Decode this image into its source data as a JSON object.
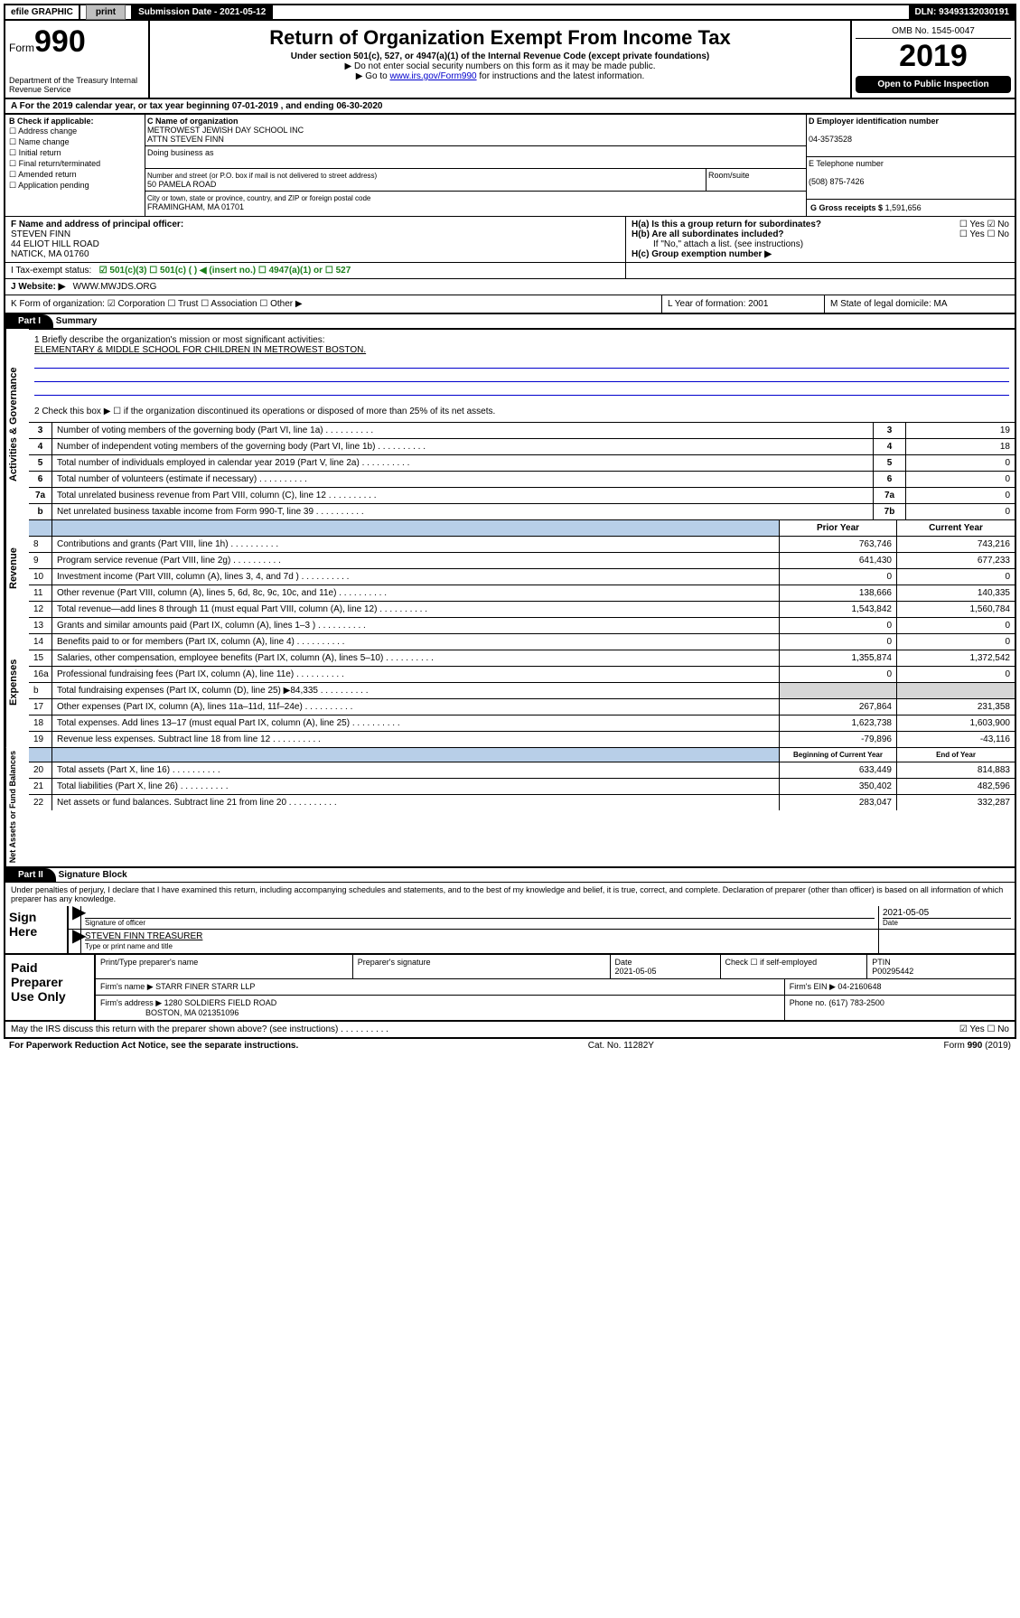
{
  "topbar": {
    "efile": "efile GRAPHIC",
    "print": "print",
    "subdate_lbl": "Submission Date - 2021-05-12",
    "dln": "DLN: 93493132030191"
  },
  "header": {
    "form_small": "Form",
    "form_big": "990",
    "title": "Return of Organization Exempt From Income Tax",
    "sub": "Under section 501(c), 527, or 4947(a)(1) of the Internal Revenue Code (except private foundations)",
    "noenter": "▶ Do not enter social security numbers on this form as it may be made public.",
    "goto_pre": "▶ Go to ",
    "goto_link": "www.irs.gov/Form990",
    "goto_post": " for instructions and the latest information.",
    "omb": "OMB No. 1545-0047",
    "year": "2019",
    "open": "Open to Public Inspection",
    "dept": "Department of the Treasury Internal Revenue Service"
  },
  "row_a": "A For the 2019 calendar year, or tax year beginning 07-01-2019   , and ending 06-30-2020",
  "block_b": {
    "label": "B Check if applicable:",
    "opts": [
      "Address change",
      "Name change",
      "Initial return",
      "Final return/terminated",
      "Amended return",
      "Application pending"
    ],
    "c_label": "C Name of organization",
    "org": "METROWEST JEWISH DAY SCHOOL INC",
    "attn": "ATTN STEVEN FINN",
    "dba_lbl": "Doing business as",
    "addr_lbl": "Number and street (or P.O. box if mail is not delivered to street address)",
    "room_lbl": "Room/suite",
    "addr": "50 PAMELA ROAD",
    "city_lbl": "City or town, state or province, country, and ZIP or foreign postal code",
    "city": "FRAMINGHAM, MA  01701",
    "d_lbl": "D Employer identification number",
    "ein": "04-3573528",
    "e_lbl": "E Telephone number",
    "phone": "(508) 875-7426",
    "g_lbl": "G Gross receipts $",
    "g_val": "1,591,656"
  },
  "fh": {
    "f_lbl": "F Name and address of principal officer:",
    "f_name": "STEVEN FINN",
    "f_addr1": "44 ELIOT HILL ROAD",
    "f_addr2": "NATICK, MA  01760",
    "ha": "H(a)  Is this a group return for subordinates?",
    "ha_ans": "☐ Yes  ☑ No",
    "hb": "H(b)  Are all subordinates included?",
    "hb_ans": "☐ Yes  ☐ No",
    "hb_note": "If \"No,\" attach a list. (see instructions)",
    "hc": "H(c)  Group exemption number ▶"
  },
  "row_i": {
    "lbl": "I   Tax-exempt status:",
    "opts": "☑ 501(c)(3)   ☐ 501(c) (  ) ◀ (insert no.)   ☐ 4947(a)(1) or   ☐ 527"
  },
  "row_j": {
    "lbl": "J   Website: ▶",
    "val": "WWW.MWJDS.ORG"
  },
  "row_k": {
    "k": "K Form of organization:  ☑ Corporation  ☐ Trust  ☐ Association  ☐ Other ▶",
    "l": "L Year of formation: 2001",
    "m": "M State of legal domicile: MA"
  },
  "part1": {
    "hdr": "Part I",
    "title": "Summary",
    "q1": "1   Briefly describe the organization's mission or most significant activities:",
    "mission": "ELEMENTARY & MIDDLE SCHOOL FOR CHILDREN IN METROWEST BOSTON.",
    "q2": "2   Check this box ▶ ☐  if the organization discontinued its operations or disposed of more than 25% of its net assets."
  },
  "sections": {
    "gov": {
      "label": "Activities & Governance",
      "lines": [
        {
          "n": "3",
          "desc": "Number of voting members of the governing body (Part VI, line 1a)",
          "box": "3",
          "val": "19"
        },
        {
          "n": "4",
          "desc": "Number of independent voting members of the governing body (Part VI, line 1b)",
          "box": "4",
          "val": "18"
        },
        {
          "n": "5",
          "desc": "Total number of individuals employed in calendar year 2019 (Part V, line 2a)",
          "box": "5",
          "val": "0"
        },
        {
          "n": "6",
          "desc": "Total number of volunteers (estimate if necessary)",
          "box": "6",
          "val": "0"
        },
        {
          "n": "7a",
          "desc": "Total unrelated business revenue from Part VIII, column (C), line 12",
          "box": "7a",
          "val": "0"
        },
        {
          "n": "b",
          "desc": "Net unrelated business taxable income from Form 990-T, line 39",
          "box": "7b",
          "val": "0"
        }
      ]
    },
    "rev": {
      "label": "Revenue",
      "hdr_prior": "Prior Year",
      "hdr_curr": "Current Year",
      "lines": [
        {
          "n": "8",
          "desc": "Contributions and grants (Part VIII, line 1h)",
          "p": "763,746",
          "c": "743,216"
        },
        {
          "n": "9",
          "desc": "Program service revenue (Part VIII, line 2g)",
          "p": "641,430",
          "c": "677,233"
        },
        {
          "n": "10",
          "desc": "Investment income (Part VIII, column (A), lines 3, 4, and 7d )",
          "p": "0",
          "c": "0"
        },
        {
          "n": "11",
          "desc": "Other revenue (Part VIII, column (A), lines 5, 6d, 8c, 9c, 10c, and 11e)",
          "p": "138,666",
          "c": "140,335"
        },
        {
          "n": "12",
          "desc": "Total revenue—add lines 8 through 11 (must equal Part VIII, column (A), line 12)",
          "p": "1,543,842",
          "c": "1,560,784"
        }
      ]
    },
    "exp": {
      "label": "Expenses",
      "lines": [
        {
          "n": "13",
          "desc": "Grants and similar amounts paid (Part IX, column (A), lines 1–3 )",
          "p": "0",
          "c": "0"
        },
        {
          "n": "14",
          "desc": "Benefits paid to or for members (Part IX, column (A), line 4)",
          "p": "0",
          "c": "0"
        },
        {
          "n": "15",
          "desc": "Salaries, other compensation, employee benefits (Part IX, column (A), lines 5–10)",
          "p": "1,355,874",
          "c": "1,372,542"
        },
        {
          "n": "16a",
          "desc": "Professional fundraising fees (Part IX, column (A), line 11e)",
          "p": "0",
          "c": "0"
        },
        {
          "n": "b",
          "desc": "Total fundraising expenses (Part IX, column (D), line 25) ▶84,335",
          "p": "",
          "c": "",
          "grey": true
        },
        {
          "n": "17",
          "desc": "Other expenses (Part IX, column (A), lines 11a–11d, 11f–24e)",
          "p": "267,864",
          "c": "231,358"
        },
        {
          "n": "18",
          "desc": "Total expenses. Add lines 13–17 (must equal Part IX, column (A), line 25)",
          "p": "1,623,738",
          "c": "1,603,900"
        },
        {
          "n": "19",
          "desc": "Revenue less expenses. Subtract line 18 from line 12",
          "p": "-79,896",
          "c": "-43,116"
        }
      ]
    },
    "net": {
      "label": "Net Assets or Fund Balances",
      "hdr_prior": "Beginning of Current Year",
      "hdr_curr": "End of Year",
      "lines": [
        {
          "n": "20",
          "desc": "Total assets (Part X, line 16)",
          "p": "633,449",
          "c": "814,883"
        },
        {
          "n": "21",
          "desc": "Total liabilities (Part X, line 26)",
          "p": "350,402",
          "c": "482,596"
        },
        {
          "n": "22",
          "desc": "Net assets or fund balances. Subtract line 21 from line 20",
          "p": "283,047",
          "c": "332,287"
        }
      ]
    }
  },
  "part2": {
    "hdr": "Part II",
    "title": "Signature Block",
    "perjury": "Under penalties of perjury, I declare that I have examined this return, including accompanying schedules and statements, and to the best of my knowledge and belief, it is true, correct, and complete. Declaration of preparer (other than officer) is based on all information of which preparer has any knowledge."
  },
  "sign": {
    "left": "Sign Here",
    "sig_lbl": "Signature of officer",
    "date": "2021-05-05",
    "date_lbl": "Date",
    "name": "STEVEN FINN TREASURER",
    "name_lbl": "Type or print name and title"
  },
  "prep": {
    "left": "Paid Preparer Use Only",
    "h1": "Print/Type preparer's name",
    "h2": "Preparer's signature",
    "h3": "Date",
    "date": "2021-05-05",
    "h4": "Check ☐ if self-employed",
    "h5": "PTIN",
    "ptin": "P00295442",
    "firm_lbl": "Firm's name    ▶",
    "firm": "STARR FINER STARR LLP",
    "ein_lbl": "Firm's EIN ▶",
    "ein": "04-2160648",
    "addr_lbl": "Firm's address ▶",
    "addr1": "1280 SOLDIERS FIELD ROAD",
    "addr2": "BOSTON, MA  021351096",
    "phone_lbl": "Phone no.",
    "phone": "(617) 783-2500"
  },
  "footer": {
    "discuss": "May the IRS discuss this return with the preparer shown above? (see instructions)",
    "ans": "☑ Yes  ☐ No",
    "pra": "For Paperwork Reduction Act Notice, see the separate instructions.",
    "cat": "Cat. No. 11282Y",
    "form": "Form 990 (2019)"
  }
}
